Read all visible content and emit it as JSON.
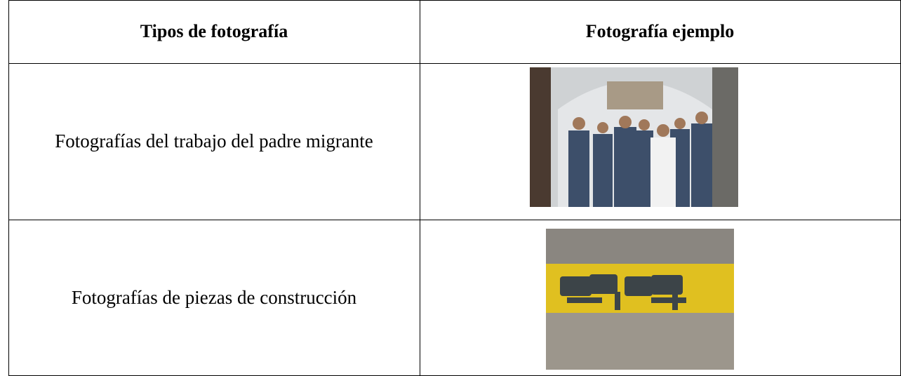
{
  "table": {
    "header": [
      "Tipos de fotografía",
      "Fotografía ejemplo"
    ],
    "rows": [
      [
        "Fotografías del trabajo del padre migrante"
      ],
      [
        "Fotografías de piezas de construcción"
      ]
    ]
  }
}
